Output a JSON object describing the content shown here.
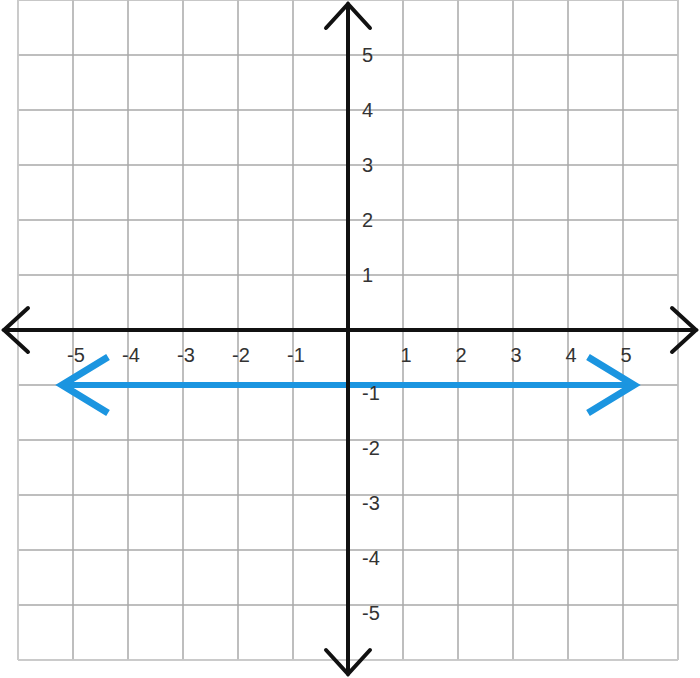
{
  "chart_data": {
    "type": "line",
    "x": [
      -5.2,
      5.2
    ],
    "values": [
      -1,
      -1
    ],
    "color": "#1b95e0",
    "marker": "arrow",
    "line_style": "solid",
    "xlim": [
      -6,
      6
    ],
    "ylim": [
      -6,
      6
    ],
    "xticks": [
      -5,
      -4,
      -3,
      -2,
      -1,
      1,
      2,
      3,
      4,
      5
    ],
    "yticks": [
      -5,
      -4,
      -3,
      -2,
      -1,
      1,
      2,
      3,
      4,
      5
    ],
    "grid": true
  }
}
